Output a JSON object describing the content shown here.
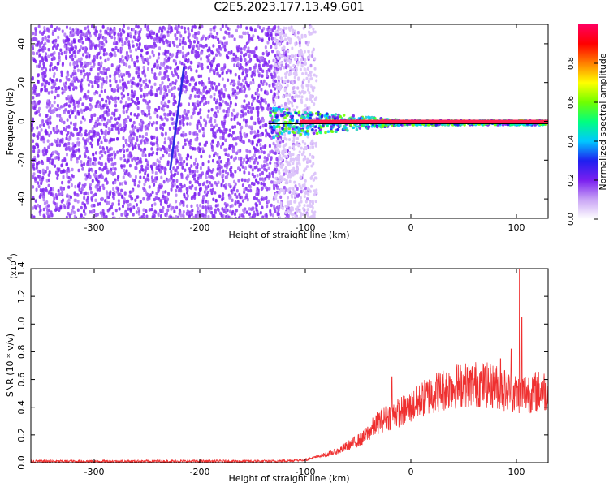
{
  "chart_data": [
    {
      "type": "heatmap",
      "title": "C2E5.2023.177.13.49.G01",
      "xlabel": "Height of straight line (km)",
      "ylabel": "Frequency (Hz)",
      "xlim": [
        -360,
        130
      ],
      "ylim": [
        -50,
        50
      ],
      "x_ticks": [
        -300,
        -200,
        -100,
        0,
        100
      ],
      "y_ticks": [
        -40,
        -20,
        0,
        20,
        40
      ],
      "colorbar": {
        "label": "Normalized spectral amplitude",
        "range": [
          0.0,
          1.0
        ],
        "ticks": [
          0.0,
          0.2,
          0.4,
          0.6,
          0.8
        ],
        "colors": [
          "#ffffff",
          "#c9a4f5",
          "#7a1ff0",
          "#1f1ff0",
          "#00c8ff",
          "#00ff80",
          "#70ff00",
          "#ffff00",
          "#ff8000",
          "#ff0000",
          "#ff0060"
        ]
      },
      "features": {
        "noise_region_x": [
          -360,
          -130
        ],
        "faint_region_x": [
          -130,
          -90
        ],
        "carrier_start_x": -135,
        "carrier_freq": 0,
        "diagonal_trace": {
          "x": [
            -228,
            -215
          ],
          "y": [
            -25,
            28
          ]
        }
      }
    },
    {
      "type": "line",
      "xlabel": "Height of straight line (km)",
      "ylabel": "SNR (10 * v/v)",
      "y_multiplier_label": "(x10",
      "y_multiplier_exp": "4",
      "xlim": [
        -360,
        130
      ],
      "ylim": [
        0,
        1.4
      ],
      "x_ticks": [
        -300,
        -200,
        -100,
        0,
        100
      ],
      "y_ticks": [
        0.0,
        0.2,
        0.4,
        0.6,
        0.8,
        1.0,
        1.2,
        1.4
      ],
      "color": "#ef3030",
      "envelope": [
        {
          "x": -360,
          "y": 0.01
        },
        {
          "x": -130,
          "y": 0.01
        },
        {
          "x": -100,
          "y": 0.02
        },
        {
          "x": -70,
          "y": 0.08
        },
        {
          "x": -45,
          "y": 0.18
        },
        {
          "x": -30,
          "y": 0.3
        },
        {
          "x": -15,
          "y": 0.35
        },
        {
          "x": 0,
          "y": 0.4
        },
        {
          "x": 20,
          "y": 0.5
        },
        {
          "x": 40,
          "y": 0.55
        },
        {
          "x": 60,
          "y": 0.57
        },
        {
          "x": 80,
          "y": 0.55
        },
        {
          "x": 100,
          "y": 0.5
        },
        {
          "x": 130,
          "y": 0.52
        }
      ],
      "spikes": [
        {
          "x": -18,
          "y": 0.62
        },
        {
          "x": 85,
          "y": 0.75
        },
        {
          "x": 95,
          "y": 0.82
        },
        {
          "x": 103,
          "y": 1.4
        },
        {
          "x": 105,
          "y": 1.05
        }
      ]
    }
  ]
}
